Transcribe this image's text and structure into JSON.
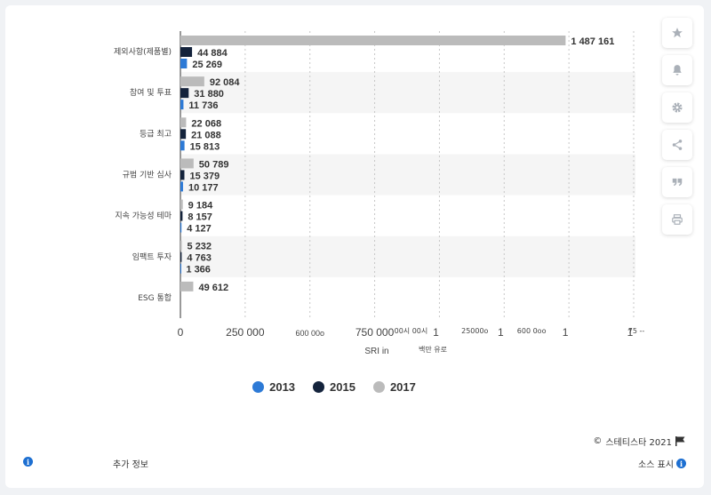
{
  "chart_data": {
    "type": "bar",
    "orientation": "horizontal",
    "categories": [
      "제외사항(제품별)",
      "참여 및 투표",
      "등급 최고",
      "규범 기반 심사",
      "지속 가능성 테마",
      "임팩트 투자",
      "ESG 통합"
    ],
    "series": [
      {
        "name": "2017",
        "color": "#bbbbbb",
        "values": [
          1487161,
          92084,
          22068,
          50789,
          9184,
          5232,
          49612
        ]
      },
      {
        "name": "2015",
        "color": "#14233c",
        "values": [
          44884,
          31880,
          21088,
          15379,
          8157,
          4763,
          null
        ]
      },
      {
        "name": "2013",
        "color": "#2d7ad6",
        "values": [
          25269,
          11736,
          15813,
          10177,
          4127,
          1366,
          null
        ]
      }
    ],
    "value_labels": [
      [
        "1 487 161",
        "44 884",
        "25 269"
      ],
      [
        "92 084",
        "31 880",
        "11 736"
      ],
      [
        "22 068",
        "21 088",
        "15 813"
      ],
      [
        "50 789",
        "15 379",
        "10 177"
      ],
      [
        "9 184",
        "8 157",
        "4 127"
      ],
      [
        "5 232",
        "4 763",
        "1 366"
      ],
      [
        "49 612",
        "",
        ""
      ]
    ],
    "xlim": [
      0,
      1750000
    ],
    "x_ticks": [
      0,
      250000,
      500000,
      750000,
      1000000,
      1250000,
      1500000,
      1750000
    ],
    "x_tick_labels": [
      [
        "0"
      ],
      [
        "250 000"
      ],
      [
        "600 00o"
      ],
      [
        "750 000"
      ],
      [
        "1",
        "00시 00시"
      ],
      [
        "1",
        "25000o"
      ],
      [
        "1",
        "600 0oo"
      ],
      [
        "1",
        "75 --"
      ]
    ],
    "xlabel_parts": [
      "SRI in",
      "백만 유로"
    ],
    "xlabel": "",
    "ylabel": "",
    "title": "",
    "grid": true
  },
  "legend": [
    {
      "label": "2013",
      "color": "#2d7ad6"
    },
    {
      "label": "2015",
      "color": "#14233c"
    },
    {
      "label": "2017",
      "color": "#bbbbbb"
    }
  ],
  "sidebar": {
    "icons": [
      "star-icon",
      "bell-icon",
      "gear-icon",
      "share-icon",
      "quote-icon",
      "print-icon"
    ]
  },
  "footer": {
    "copyright": "스테티스타 2021",
    "copyright_symbol": "©",
    "more_info": "추가 정보",
    "source": "소스 표시"
  }
}
